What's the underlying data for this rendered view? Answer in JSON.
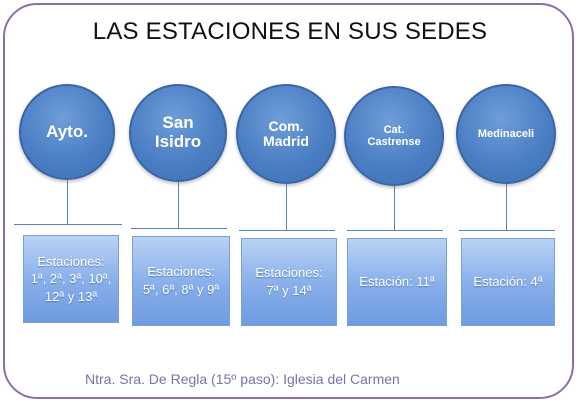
{
  "title": "LAS ESTACIONES EN SUS SEDES",
  "colors": {
    "circle": "#4b7fc4",
    "box": "#86aeea",
    "frame": "#8a6fb0",
    "footer": "#7f70a8"
  },
  "venues": [
    {
      "name": "Ayto.",
      "stations": "Estaciones: 1ª, 2ª, 3ª, 10ª, 12ª y 13ª"
    },
    {
      "name": "San Isidro",
      "stations": "Estaciones: 5ª, 6ª, 8ª y 9ª"
    },
    {
      "name": "Com. Madrid",
      "stations": "Estaciones: 7ª y 14ª"
    },
    {
      "name": "Cat. Castrense",
      "stations": "Estación: 11ª"
    },
    {
      "name": "Medinaceli",
      "stations": "Estación: 4ª"
    }
  ],
  "footer": "Ntra. Sra. De Regla (15º paso):  Iglesia del Carmen"
}
